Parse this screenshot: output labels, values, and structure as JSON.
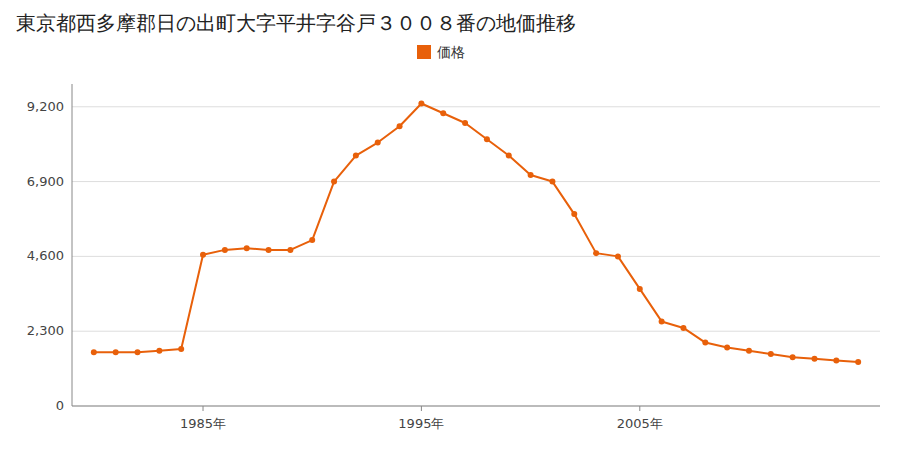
{
  "chart_data": {
    "type": "line",
    "title": "東京都西多摩郡日の出町大字平井字谷戸３００８番の地価推移",
    "x": [
      1980,
      1981,
      1982,
      1983,
      1984,
      1985,
      1986,
      1987,
      1988,
      1989,
      1990,
      1991,
      1992,
      1993,
      1994,
      1995,
      1996,
      1997,
      1998,
      1999,
      2000,
      2001,
      2002,
      2003,
      2004,
      2005,
      2006,
      2007,
      2008,
      2009,
      2010,
      2011,
      2012,
      2013,
      2014,
      2015
    ],
    "series": [
      {
        "name": "価格",
        "color": "#E8600A",
        "marker": "circle",
        "values": [
          1650,
          1650,
          1650,
          1700,
          1750,
          4650,
          4800,
          4850,
          4800,
          4800,
          5100,
          6900,
          7700,
          8100,
          8600,
          9300,
          9000,
          8700,
          8200,
          7700,
          7100,
          6900,
          5900,
          4700,
          4600,
          3600,
          2600,
          2400,
          1950,
          1800,
          1700,
          1600,
          1500,
          1450,
          1400,
          1350
        ]
      }
    ],
    "xlim": [
      1979,
      2016
    ],
    "xticks": [
      {
        "value": 1985,
        "label": "1985年"
      },
      {
        "value": 1995,
        "label": "1995年"
      },
      {
        "value": 2005,
        "label": "2005年"
      }
    ],
    "ylim": [
      0,
      9900
    ],
    "yticks": [
      0,
      {
        "value": 2300,
        "label": "2,300"
      },
      {
        "value": 4600,
        "label": "4,600"
      },
      {
        "value": 6900,
        "label": "6,900"
      },
      {
        "value": 9200,
        "label": "9,200"
      }
    ],
    "grid": true,
    "legend": "top"
  }
}
